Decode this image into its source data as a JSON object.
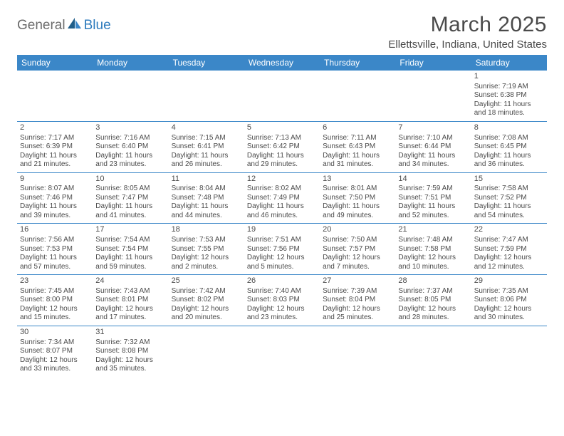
{
  "brand": {
    "part1": "General",
    "part2": "Blue"
  },
  "title": "March 2025",
  "location": "Ellettsville, Indiana, United States",
  "colors": {
    "header_bg": "#3b87c8",
    "header_text": "#ffffff",
    "body_text": "#4a4a4a",
    "rule": "#3b87c8",
    "logo_gray": "#6b6b6b",
    "logo_blue": "#2d7bbd"
  },
  "day_names": [
    "Sunday",
    "Monday",
    "Tuesday",
    "Wednesday",
    "Thursday",
    "Friday",
    "Saturday"
  ],
  "weeks": [
    [
      null,
      null,
      null,
      null,
      null,
      null,
      {
        "n": "1",
        "sunrise": "Sunrise: 7:19 AM",
        "sunset": "Sunset: 6:38 PM",
        "day": "Daylight: 11 hours and 18 minutes."
      }
    ],
    [
      {
        "n": "2",
        "sunrise": "Sunrise: 7:17 AM",
        "sunset": "Sunset: 6:39 PM",
        "day": "Daylight: 11 hours and 21 minutes."
      },
      {
        "n": "3",
        "sunrise": "Sunrise: 7:16 AM",
        "sunset": "Sunset: 6:40 PM",
        "day": "Daylight: 11 hours and 23 minutes."
      },
      {
        "n": "4",
        "sunrise": "Sunrise: 7:15 AM",
        "sunset": "Sunset: 6:41 PM",
        "day": "Daylight: 11 hours and 26 minutes."
      },
      {
        "n": "5",
        "sunrise": "Sunrise: 7:13 AM",
        "sunset": "Sunset: 6:42 PM",
        "day": "Daylight: 11 hours and 29 minutes."
      },
      {
        "n": "6",
        "sunrise": "Sunrise: 7:11 AM",
        "sunset": "Sunset: 6:43 PM",
        "day": "Daylight: 11 hours and 31 minutes."
      },
      {
        "n": "7",
        "sunrise": "Sunrise: 7:10 AM",
        "sunset": "Sunset: 6:44 PM",
        "day": "Daylight: 11 hours and 34 minutes."
      },
      {
        "n": "8",
        "sunrise": "Sunrise: 7:08 AM",
        "sunset": "Sunset: 6:45 PM",
        "day": "Daylight: 11 hours and 36 minutes."
      }
    ],
    [
      {
        "n": "9",
        "sunrise": "Sunrise: 8:07 AM",
        "sunset": "Sunset: 7:46 PM",
        "day": "Daylight: 11 hours and 39 minutes."
      },
      {
        "n": "10",
        "sunrise": "Sunrise: 8:05 AM",
        "sunset": "Sunset: 7:47 PM",
        "day": "Daylight: 11 hours and 41 minutes."
      },
      {
        "n": "11",
        "sunrise": "Sunrise: 8:04 AM",
        "sunset": "Sunset: 7:48 PM",
        "day": "Daylight: 11 hours and 44 minutes."
      },
      {
        "n": "12",
        "sunrise": "Sunrise: 8:02 AM",
        "sunset": "Sunset: 7:49 PM",
        "day": "Daylight: 11 hours and 46 minutes."
      },
      {
        "n": "13",
        "sunrise": "Sunrise: 8:01 AM",
        "sunset": "Sunset: 7:50 PM",
        "day": "Daylight: 11 hours and 49 minutes."
      },
      {
        "n": "14",
        "sunrise": "Sunrise: 7:59 AM",
        "sunset": "Sunset: 7:51 PM",
        "day": "Daylight: 11 hours and 52 minutes."
      },
      {
        "n": "15",
        "sunrise": "Sunrise: 7:58 AM",
        "sunset": "Sunset: 7:52 PM",
        "day": "Daylight: 11 hours and 54 minutes."
      }
    ],
    [
      {
        "n": "16",
        "sunrise": "Sunrise: 7:56 AM",
        "sunset": "Sunset: 7:53 PM",
        "day": "Daylight: 11 hours and 57 minutes."
      },
      {
        "n": "17",
        "sunrise": "Sunrise: 7:54 AM",
        "sunset": "Sunset: 7:54 PM",
        "day": "Daylight: 11 hours and 59 minutes."
      },
      {
        "n": "18",
        "sunrise": "Sunrise: 7:53 AM",
        "sunset": "Sunset: 7:55 PM",
        "day": "Daylight: 12 hours and 2 minutes."
      },
      {
        "n": "19",
        "sunrise": "Sunrise: 7:51 AM",
        "sunset": "Sunset: 7:56 PM",
        "day": "Daylight: 12 hours and 5 minutes."
      },
      {
        "n": "20",
        "sunrise": "Sunrise: 7:50 AM",
        "sunset": "Sunset: 7:57 PM",
        "day": "Daylight: 12 hours and 7 minutes."
      },
      {
        "n": "21",
        "sunrise": "Sunrise: 7:48 AM",
        "sunset": "Sunset: 7:58 PM",
        "day": "Daylight: 12 hours and 10 minutes."
      },
      {
        "n": "22",
        "sunrise": "Sunrise: 7:47 AM",
        "sunset": "Sunset: 7:59 PM",
        "day": "Daylight: 12 hours and 12 minutes."
      }
    ],
    [
      {
        "n": "23",
        "sunrise": "Sunrise: 7:45 AM",
        "sunset": "Sunset: 8:00 PM",
        "day": "Daylight: 12 hours and 15 minutes."
      },
      {
        "n": "24",
        "sunrise": "Sunrise: 7:43 AM",
        "sunset": "Sunset: 8:01 PM",
        "day": "Daylight: 12 hours and 17 minutes."
      },
      {
        "n": "25",
        "sunrise": "Sunrise: 7:42 AM",
        "sunset": "Sunset: 8:02 PM",
        "day": "Daylight: 12 hours and 20 minutes."
      },
      {
        "n": "26",
        "sunrise": "Sunrise: 7:40 AM",
        "sunset": "Sunset: 8:03 PM",
        "day": "Daylight: 12 hours and 23 minutes."
      },
      {
        "n": "27",
        "sunrise": "Sunrise: 7:39 AM",
        "sunset": "Sunset: 8:04 PM",
        "day": "Daylight: 12 hours and 25 minutes."
      },
      {
        "n": "28",
        "sunrise": "Sunrise: 7:37 AM",
        "sunset": "Sunset: 8:05 PM",
        "day": "Daylight: 12 hours and 28 minutes."
      },
      {
        "n": "29",
        "sunrise": "Sunrise: 7:35 AM",
        "sunset": "Sunset: 8:06 PM",
        "day": "Daylight: 12 hours and 30 minutes."
      }
    ],
    [
      {
        "n": "30",
        "sunrise": "Sunrise: 7:34 AM",
        "sunset": "Sunset: 8:07 PM",
        "day": "Daylight: 12 hours and 33 minutes."
      },
      {
        "n": "31",
        "sunrise": "Sunrise: 7:32 AM",
        "sunset": "Sunset: 8:08 PM",
        "day": "Daylight: 12 hours and 35 minutes."
      },
      null,
      null,
      null,
      null,
      null
    ]
  ]
}
